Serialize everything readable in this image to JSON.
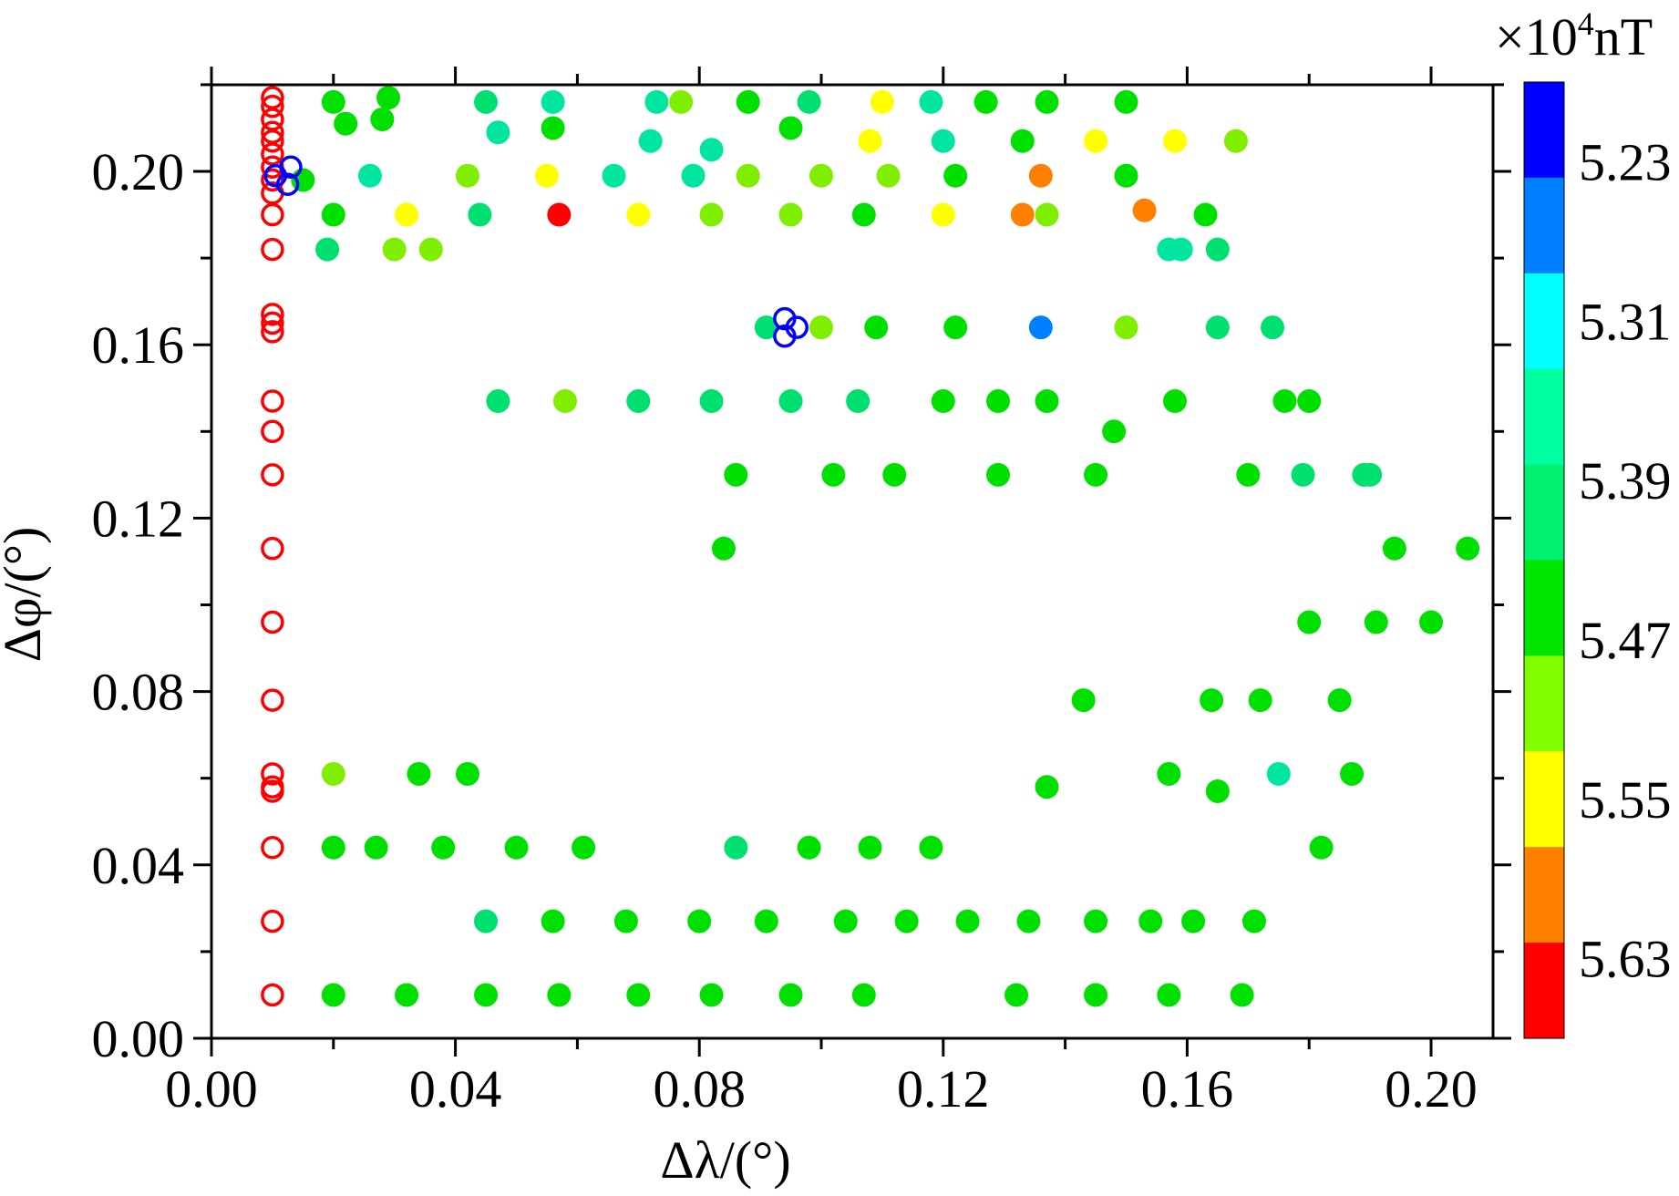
{
  "chart_data": {
    "type": "scatter",
    "xlabel": "Δλ/(°)",
    "ylabel": "Δφ/(°)",
    "xlim": [
      0,
      0.21
    ],
    "ylim": [
      0,
      0.22
    ],
    "x_ticks": [
      "0.00",
      "0.04",
      "0.08",
      "0.12",
      "0.16",
      "0.20"
    ],
    "y_ticks": [
      "0.00",
      "0.04",
      "0.08",
      "0.12",
      "0.16",
      "0.20"
    ],
    "x_tick_values": [
      0,
      0.04,
      0.08,
      0.12,
      0.16,
      0.2
    ],
    "y_tick_values": [
      0,
      0.04,
      0.08,
      0.12,
      0.16,
      0.2
    ],
    "grid": false,
    "colorbar": {
      "unit_prefix": "×10",
      "unit_exp": "4",
      "unit_suffix": "nT",
      "labels": [
        "5.23",
        "5.31",
        "5.39",
        "5.47",
        "5.55",
        "5.63"
      ],
      "bands": [
        "#0000ff",
        "#0080ff",
        "#00ffff",
        "#00ffa0",
        "#00f070",
        "#00e600",
        "#80ff00",
        "#ffff00",
        "#ff8000",
        "#ff0000"
      ]
    },
    "colors": {
      "red": "#ff0000",
      "orange": "#ff8000",
      "yellow": "#ffff00",
      "lime": "#80ee00",
      "green": "#00e000",
      "spring": "#00e070",
      "teal": "#00e6a0",
      "azure": "#0080ff",
      "blue": "#0000ff"
    },
    "series": [
      {
        "style": "filled",
        "points": [
          [
            0.02,
            0.216,
            "green"
          ],
          [
            0.029,
            0.217,
            "green"
          ],
          [
            0.045,
            0.216,
            "spring"
          ],
          [
            0.056,
            0.216,
            "teal"
          ],
          [
            0.073,
            0.216,
            "teal"
          ],
          [
            0.077,
            0.216,
            "lime"
          ],
          [
            0.088,
            0.216,
            "green"
          ],
          [
            0.098,
            0.216,
            "spring"
          ],
          [
            0.11,
            0.216,
            "yellow"
          ],
          [
            0.118,
            0.216,
            "teal"
          ],
          [
            0.127,
            0.216,
            "green"
          ],
          [
            0.137,
            0.216,
            "green"
          ],
          [
            0.15,
            0.216,
            "green"
          ],
          [
            0.022,
            0.211,
            "green"
          ],
          [
            0.028,
            0.212,
            "green"
          ],
          [
            0.047,
            0.209,
            "teal"
          ],
          [
            0.056,
            0.21,
            "green"
          ],
          [
            0.072,
            0.207,
            "teal"
          ],
          [
            0.082,
            0.205,
            "teal"
          ],
          [
            0.095,
            0.21,
            "green"
          ],
          [
            0.108,
            0.207,
            "yellow"
          ],
          [
            0.12,
            0.207,
            "teal"
          ],
          [
            0.133,
            0.207,
            "green"
          ],
          [
            0.145,
            0.207,
            "yellow"
          ],
          [
            0.158,
            0.207,
            "yellow"
          ],
          [
            0.168,
            0.207,
            "lime"
          ],
          [
            0.015,
            0.198,
            "green"
          ],
          [
            0.026,
            0.199,
            "teal"
          ],
          [
            0.042,
            0.199,
            "lime"
          ],
          [
            0.055,
            0.199,
            "yellow"
          ],
          [
            0.066,
            0.199,
            "teal"
          ],
          [
            0.079,
            0.199,
            "teal"
          ],
          [
            0.088,
            0.199,
            "lime"
          ],
          [
            0.1,
            0.199,
            "lime"
          ],
          [
            0.111,
            0.199,
            "lime"
          ],
          [
            0.122,
            0.199,
            "green"
          ],
          [
            0.136,
            0.199,
            "orange"
          ],
          [
            0.15,
            0.199,
            "green"
          ],
          [
            0.02,
            0.19,
            "green"
          ],
          [
            0.032,
            0.19,
            "yellow"
          ],
          [
            0.044,
            0.19,
            "spring"
          ],
          [
            0.057,
            0.19,
            "red"
          ],
          [
            0.07,
            0.19,
            "yellow"
          ],
          [
            0.082,
            0.19,
            "lime"
          ],
          [
            0.095,
            0.19,
            "lime"
          ],
          [
            0.107,
            0.19,
            "green"
          ],
          [
            0.12,
            0.19,
            "yellow"
          ],
          [
            0.133,
            0.19,
            "orange"
          ],
          [
            0.137,
            0.19,
            "lime"
          ],
          [
            0.153,
            0.191,
            "orange"
          ],
          [
            0.163,
            0.19,
            "green"
          ],
          [
            0.019,
            0.182,
            "spring"
          ],
          [
            0.03,
            0.182,
            "lime"
          ],
          [
            0.036,
            0.182,
            "lime"
          ],
          [
            0.157,
            0.182,
            "teal"
          ],
          [
            0.159,
            0.182,
            "teal"
          ],
          [
            0.165,
            0.182,
            "spring"
          ],
          [
            0.091,
            0.164,
            "spring"
          ],
          [
            0.1,
            0.164,
            "lime"
          ],
          [
            0.109,
            0.164,
            "green"
          ],
          [
            0.122,
            0.164,
            "green"
          ],
          [
            0.136,
            0.164,
            "azure"
          ],
          [
            0.15,
            0.164,
            "lime"
          ],
          [
            0.165,
            0.164,
            "spring"
          ],
          [
            0.174,
            0.164,
            "spring"
          ],
          [
            0.047,
            0.147,
            "spring"
          ],
          [
            0.058,
            0.147,
            "lime"
          ],
          [
            0.07,
            0.147,
            "spring"
          ],
          [
            0.082,
            0.147,
            "spring"
          ],
          [
            0.095,
            0.147,
            "spring"
          ],
          [
            0.106,
            0.147,
            "spring"
          ],
          [
            0.12,
            0.147,
            "green"
          ],
          [
            0.129,
            0.147,
            "green"
          ],
          [
            0.137,
            0.147,
            "green"
          ],
          [
            0.158,
            0.147,
            "green"
          ],
          [
            0.176,
            0.147,
            "green"
          ],
          [
            0.18,
            0.147,
            "green"
          ],
          [
            0.148,
            0.14,
            "green"
          ],
          [
            0.086,
            0.13,
            "green"
          ],
          [
            0.102,
            0.13,
            "green"
          ],
          [
            0.112,
            0.13,
            "green"
          ],
          [
            0.129,
            0.13,
            "green"
          ],
          [
            0.145,
            0.13,
            "green"
          ],
          [
            0.17,
            0.13,
            "green"
          ],
          [
            0.179,
            0.13,
            "spring"
          ],
          [
            0.189,
            0.13,
            "spring"
          ],
          [
            0.19,
            0.13,
            "spring"
          ],
          [
            0.084,
            0.113,
            "green"
          ],
          [
            0.194,
            0.113,
            "green"
          ],
          [
            0.206,
            0.113,
            "green"
          ],
          [
            0.18,
            0.096,
            "green"
          ],
          [
            0.191,
            0.096,
            "green"
          ],
          [
            0.2,
            0.096,
            "green"
          ],
          [
            0.143,
            0.078,
            "green"
          ],
          [
            0.164,
            0.078,
            "green"
          ],
          [
            0.172,
            0.078,
            "green"
          ],
          [
            0.185,
            0.078,
            "green"
          ],
          [
            0.02,
            0.061,
            "lime"
          ],
          [
            0.034,
            0.061,
            "green"
          ],
          [
            0.042,
            0.061,
            "green"
          ],
          [
            0.157,
            0.061,
            "green"
          ],
          [
            0.175,
            0.061,
            "teal"
          ],
          [
            0.187,
            0.061,
            "green"
          ],
          [
            0.137,
            0.058,
            "green"
          ],
          [
            0.165,
            0.057,
            "green"
          ],
          [
            0.02,
            0.044,
            "green"
          ],
          [
            0.027,
            0.044,
            "green"
          ],
          [
            0.038,
            0.044,
            "green"
          ],
          [
            0.05,
            0.044,
            "green"
          ],
          [
            0.061,
            0.044,
            "green"
          ],
          [
            0.086,
            0.044,
            "spring"
          ],
          [
            0.098,
            0.044,
            "green"
          ],
          [
            0.108,
            0.044,
            "green"
          ],
          [
            0.118,
            0.044,
            "green"
          ],
          [
            0.182,
            0.044,
            "green"
          ],
          [
            0.045,
            0.027,
            "spring"
          ],
          [
            0.056,
            0.027,
            "green"
          ],
          [
            0.068,
            0.027,
            "green"
          ],
          [
            0.08,
            0.027,
            "green"
          ],
          [
            0.091,
            0.027,
            "green"
          ],
          [
            0.104,
            0.027,
            "green"
          ],
          [
            0.114,
            0.027,
            "green"
          ],
          [
            0.124,
            0.027,
            "green"
          ],
          [
            0.134,
            0.027,
            "green"
          ],
          [
            0.145,
            0.027,
            "green"
          ],
          [
            0.154,
            0.027,
            "green"
          ],
          [
            0.161,
            0.027,
            "green"
          ],
          [
            0.171,
            0.027,
            "green"
          ],
          [
            0.02,
            0.01,
            "green"
          ],
          [
            0.032,
            0.01,
            "green"
          ],
          [
            0.045,
            0.01,
            "green"
          ],
          [
            0.057,
            0.01,
            "green"
          ],
          [
            0.07,
            0.01,
            "green"
          ],
          [
            0.082,
            0.01,
            "green"
          ],
          [
            0.095,
            0.01,
            "green"
          ],
          [
            0.107,
            0.01,
            "green"
          ],
          [
            0.132,
            0.01,
            "green"
          ],
          [
            0.145,
            0.01,
            "green"
          ],
          [
            0.157,
            0.01,
            "green"
          ],
          [
            0.169,
            0.01,
            "green"
          ]
        ]
      },
      {
        "style": "open",
        "color": "red",
        "points": [
          [
            0.01,
            0.217
          ],
          [
            0.01,
            0.215
          ],
          [
            0.01,
            0.212
          ],
          [
            0.01,
            0.209
          ],
          [
            0.01,
            0.207
          ],
          [
            0.01,
            0.204
          ],
          [
            0.01,
            0.201
          ],
          [
            0.01,
            0.198
          ],
          [
            0.01,
            0.195
          ],
          [
            0.01,
            0.19
          ],
          [
            0.01,
            0.182
          ],
          [
            0.01,
            0.167
          ],
          [
            0.01,
            0.165
          ],
          [
            0.01,
            0.163
          ],
          [
            0.01,
            0.147
          ],
          [
            0.01,
            0.14
          ],
          [
            0.01,
            0.13
          ],
          [
            0.01,
            0.113
          ],
          [
            0.01,
            0.096
          ],
          [
            0.01,
            0.078
          ],
          [
            0.01,
            0.061
          ],
          [
            0.01,
            0.058
          ],
          [
            0.01,
            0.057
          ],
          [
            0.01,
            0.044
          ],
          [
            0.01,
            0.027
          ],
          [
            0.01,
            0.01
          ]
        ]
      },
      {
        "style": "open",
        "color": "blue",
        "points": [
          [
            0.0105,
            0.199
          ],
          [
            0.013,
            0.201
          ],
          [
            0.0125,
            0.197
          ],
          [
            0.094,
            0.166
          ],
          [
            0.094,
            0.162
          ],
          [
            0.096,
            0.164
          ]
        ]
      }
    ]
  }
}
